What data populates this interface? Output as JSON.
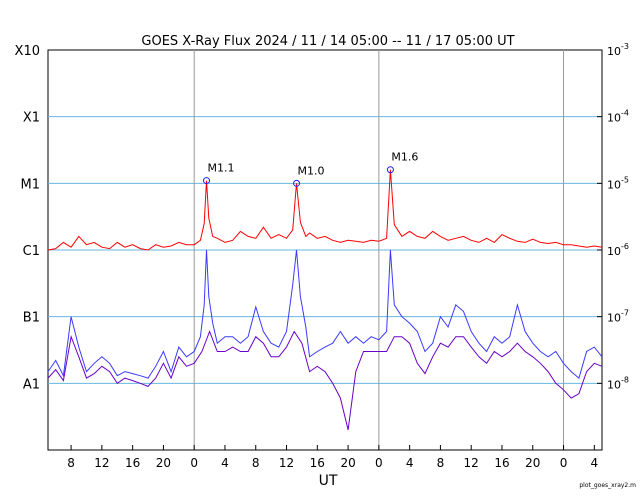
{
  "chart_data": {
    "type": "line",
    "title": "GOES X-Ray Flux   2024 / 11 / 14   05:00 -- 11 / 17   05:00   UT",
    "xlabel": "UT",
    "footer": "plot_goes_xray2.m",
    "x_range_hours": [
      0,
      72
    ],
    "y_scale": "log",
    "ylim_w_m2": [
      "1e-9",
      "1e-3"
    ],
    "grid": "horizontal at each decade; vertical gray lines at day boundaries (00 UT)",
    "left_axis_labels": [
      "X10",
      "X1",
      "M1",
      "C1",
      "B1",
      "A1"
    ],
    "right_axis_labels": [
      {
        "base": "10",
        "exp": "-3"
      },
      {
        "base": "10",
        "exp": "-4"
      },
      {
        "base": "10",
        "exp": "-5"
      },
      {
        "base": "10",
        "exp": "-6"
      },
      {
        "base": "10",
        "exp": "-7"
      },
      {
        "base": "10",
        "exp": "-8"
      }
    ],
    "x_tick_labels": [
      "8",
      "12",
      "16",
      "20",
      "0",
      "4",
      "8",
      "12",
      "16",
      "20",
      "0",
      "4",
      "8",
      "12",
      "16",
      "20",
      "0",
      "4"
    ],
    "x_tick_hours": [
      3,
      7,
      11,
      15,
      19,
      23,
      27,
      31,
      35,
      39,
      43,
      47,
      51,
      55,
      59,
      63,
      67,
      71
    ],
    "day_boundary_hours": [
      19,
      43,
      67
    ],
    "colors": {
      "long_channel": "#ff0000",
      "short_channel_blue": "#3a3aff",
      "short_channel_purple": "#6a00c8",
      "grid": "#66b8e0",
      "day_line": "#999999"
    },
    "flares": [
      {
        "label": "M1.1",
        "x_hour": 20.6,
        "flux": "1.1e-5"
      },
      {
        "label": "M1.0",
        "x_hour": 32.3,
        "flux": "1.0e-5"
      },
      {
        "label": "M1.6",
        "x_hour": 44.5,
        "flux": "1.6e-5"
      }
    ],
    "series": [
      {
        "name": "",
        "color": "#ff0000",
        "x_hours": [
          0,
          1,
          2,
          3,
          4,
          5,
          6,
          7,
          8,
          9,
          10,
          11,
          12,
          13,
          14,
          15,
          16,
          17,
          18,
          19,
          19.8,
          20.3,
          20.6,
          20.9,
          21.4,
          22,
          23,
          24,
          25,
          26,
          27,
          28,
          29,
          30,
          31,
          31.8,
          32.3,
          32.8,
          33.5,
          34,
          35,
          36,
          37,
          38,
          39,
          40,
          41,
          42,
          43,
          44,
          44.5,
          45,
          46,
          47,
          48,
          49,
          50,
          51,
          52,
          53,
          54,
          55,
          56,
          57,
          58,
          59,
          60,
          61,
          62,
          63,
          64,
          65,
          66,
          67,
          68,
          69,
          70,
          71,
          72
        ],
        "flux": [
          "1e-6",
          "1.05e-6",
          "1.3e-6",
          "1.1e-6",
          "1.6e-6",
          "1.2e-6",
          "1.3e-6",
          "1.1e-6",
          "1.05e-6",
          "1.3e-6",
          "1.1e-6",
          "1.2e-6",
          "1.05e-6",
          "1.0e-6",
          "1.2e-6",
          "1.1e-6",
          "1.15e-6",
          "1.3e-6",
          "1.2e-6",
          "1.2e-6",
          "1.4e-6",
          "2.5e-6",
          "1.1e-5",
          "3e-6",
          "1.6e-6",
          "1.5e-6",
          "1.3e-6",
          "1.4e-6",
          "1.9e-6",
          "1.6e-6",
          "1.5e-6",
          "2.2e-6",
          "1.5e-6",
          "1.7e-6",
          "1.5e-6",
          "2.0e-6",
          "1.0e-5",
          "2.6e-6",
          "1.6e-6",
          "1.8e-6",
          "1.5e-6",
          "1.6e-6",
          "1.4e-6",
          "1.3e-6",
          "1.4e-6",
          "1.35e-6",
          "1.3e-6",
          "1.4e-6",
          "1.35e-6",
          "1.5e-6",
          "1.6e-5",
          "2.4e-6",
          "1.6e-6",
          "1.9e-6",
          "1.6e-6",
          "1.5e-6",
          "1.9e-6",
          "1.6e-6",
          "1.4e-6",
          "1.5e-6",
          "1.6e-6",
          "1.4e-6",
          "1.3e-6",
          "1.5e-6",
          "1.3e-6",
          "1.7e-6",
          "1.5e-6",
          "1.35e-6",
          "1.3e-6",
          "1.45e-6",
          "1.3e-6",
          "1.25e-6",
          "1.3e-6",
          "1.2e-6",
          "1.2e-6",
          "1.15e-6",
          "1.1e-6",
          "1.15e-6",
          "1.1e-6"
        ]
      },
      {
        "name": "",
        "color": "#3a3aff",
        "x_hours": [
          0,
          1,
          2,
          3,
          4,
          5,
          6,
          7,
          8,
          9,
          10,
          11,
          12,
          13,
          14,
          15,
          16,
          17,
          18,
          19,
          19.8,
          20.3,
          20.6,
          20.9,
          21.4,
          22,
          23,
          24,
          25,
          26,
          27,
          28,
          29,
          30,
          31,
          31.8,
          32.3,
          32.8,
          33.5,
          34,
          35,
          36,
          37,
          38,
          39,
          40,
          41,
          42,
          43,
          44,
          44.5,
          45,
          46,
          47,
          48,
          49,
          50,
          51,
          52,
          53,
          54,
          55,
          56,
          57,
          58,
          59,
          60,
          61,
          62,
          63,
          64,
          65,
          66,
          67,
          68,
          69,
          70,
          71,
          72
        ],
        "flux": [
          "1.5e-8",
          "2.2e-8",
          "1.3e-8",
          "1.0e-7",
          "3.5e-8",
          "1.5e-8",
          "2e-8",
          "2.5e-8",
          "2e-8",
          "1.3e-8",
          "1.5e-8",
          "1.4e-8",
          "1.3e-8",
          "1.2e-8",
          "1.8e-8",
          "3e-8",
          "1.5e-8",
          "3.5e-8",
          "2.5e-8",
          "3e-8",
          "5e-8",
          "1.5e-7",
          "1.0e-6",
          "2e-7",
          "8e-8",
          "4e-8",
          "5e-8",
          "5e-8",
          "4e-8",
          "5e-8",
          "1.4e-7",
          "6e-8",
          "4e-8",
          "3.5e-8",
          "6e-8",
          "3e-7",
          "1.0e-6",
          "2e-7",
          "7e-8",
          "2.5e-8",
          "3e-8",
          "3.5e-8",
          "4e-8",
          "6e-8",
          "4e-8",
          "5e-8",
          "4e-8",
          "5e-8",
          "4.5e-8",
          "6e-8",
          "1.0e-6",
          "1.5e-7",
          "1.0e-7",
          "8e-8",
          "6e-8",
          "3e-8",
          "4e-8",
          "1.0e-7",
          "7e-8",
          "1.5e-7",
          "1.2e-7",
          "6e-8",
          "4e-8",
          "3e-8",
          "5e-8",
          "4e-8",
          "5e-8",
          "1.5e-7",
          "6e-8",
          "4e-8",
          "3e-8",
          "2.5e-8",
          "3e-8",
          "2e-8",
          "1.5e-8",
          "1.2e-8",
          "3e-8",
          "3.5e-8",
          "2.5e-8"
        ]
      },
      {
        "name": "",
        "color": "#6a00c8",
        "x_hours": [
          0,
          1,
          2,
          3,
          4,
          5,
          6,
          7,
          8,
          9,
          10,
          11,
          12,
          13,
          14,
          15,
          16,
          17,
          18,
          19,
          20,
          21,
          22,
          23,
          24,
          25,
          26,
          27,
          28,
          29,
          30,
          31,
          32,
          33,
          34,
          35,
          36,
          37,
          38,
          39,
          40,
          41,
          42,
          43,
          44,
          45,
          46,
          47,
          48,
          49,
          50,
          51,
          52,
          53,
          54,
          55,
          56,
          57,
          58,
          59,
          60,
          61,
          62,
          63,
          64,
          65,
          66,
          67,
          68,
          69,
          70,
          71,
          72
        ],
        "flux": [
          "1.2e-8",
          "1.6e-8",
          "1.1e-8",
          "5e-8",
          "2.5e-8",
          "1.2e-8",
          "1.4e-8",
          "1.8e-8",
          "1.5e-8",
          "1.0e-8",
          "1.2e-8",
          "1.1e-8",
          "1.0e-8",
          "9e-9",
          "1.2e-8",
          "2e-8",
          "1.2e-8",
          "2.5e-8",
          "1.8e-8",
          "2e-8",
          "3e-8",
          "6e-8",
          "3e-8",
          "3e-8",
          "3.5e-8",
          "3e-8",
          "3e-8",
          "5e-8",
          "4e-8",
          "2.5e-8",
          "2.5e-8",
          "3.5e-8",
          "6e-8",
          "4e-8",
          "1.5e-8",
          "1.8e-8",
          "1.5e-8",
          "1.0e-8",
          "6e-9",
          "2e-9",
          "1.5e-8",
          "3e-8",
          "3e-8",
          "3e-8",
          "3e-8",
          "5e-8",
          "5e-8",
          "4e-8",
          "2e-8",
          "1.4e-8",
          "2.5e-8",
          "4e-8",
          "3.5e-8",
          "5e-8",
          "5e-8",
          "3.5e-8",
          "2.5e-8",
          "2e-8",
          "3e-8",
          "2.5e-8",
          "3e-8",
          "4e-8",
          "3e-8",
          "2.5e-8",
          "2e-8",
          "1.5e-8",
          "1.0e-8",
          "8e-9",
          "6e-9",
          "7e-9",
          "1.5e-8",
          "2e-8",
          "1.8e-8"
        ]
      }
    ]
  }
}
